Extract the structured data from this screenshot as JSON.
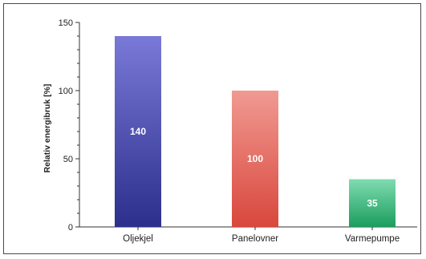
{
  "chart_data": {
    "type": "bar",
    "title": "",
    "xlabel": "",
    "ylabel": "Relativ energibruk [%]",
    "categories": [
      "Oljekjel",
      "Panelovner",
      "Varmepumpe"
    ],
    "values": [
      140,
      100,
      35
    ],
    "data_labels": [
      "140",
      "100",
      "35"
    ],
    "ylim": [
      0,
      150
    ],
    "yticks": [
      0,
      50,
      100,
      150
    ],
    "ytick_labels": [
      "0",
      "50",
      "100",
      "150"
    ],
    "grid": false,
    "legend": "none",
    "bar_colors": [
      {
        "top": "#7a79d8",
        "bottom": "#2c2f8c"
      },
      {
        "top": "#f09a92",
        "bottom": "#d9473c"
      },
      {
        "top": "#7fdcb0",
        "bottom": "#1b9d5e"
      }
    ]
  }
}
